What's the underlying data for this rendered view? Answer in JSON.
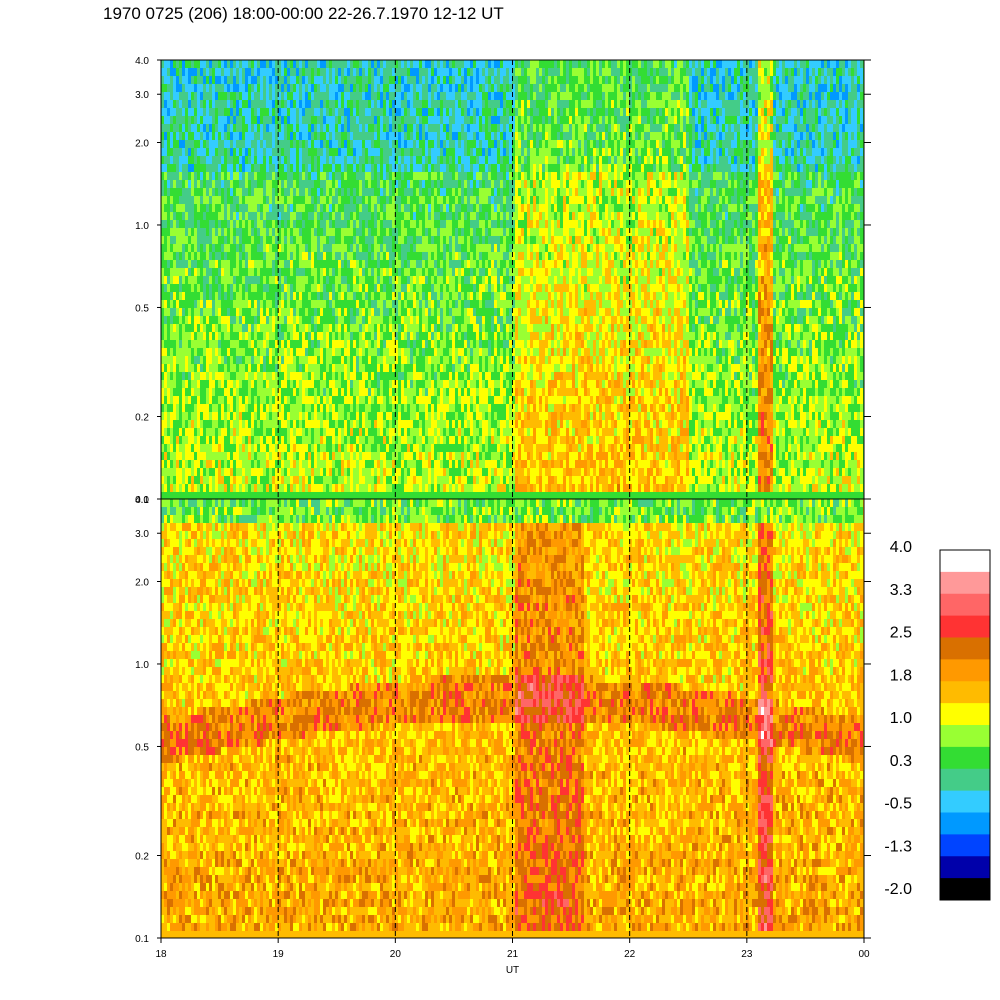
{
  "title": "1970 0725 (206) 18:00-00:00 22-26.7.1970  12-12 UT",
  "chart_data": {
    "type": "heatmap",
    "title": "1970 0725 (206) 18:00-00:00 22-26.7.1970  12-12 UT",
    "xlabel": "UT",
    "x_ticks": [
      "18",
      "19",
      "20",
      "21",
      "22",
      "23",
      "00"
    ],
    "x_range": [
      18,
      24
    ],
    "dashed_lines_at": [
      19,
      20,
      21,
      22,
      23
    ],
    "panels": [
      {
        "name": "upper",
        "y_scale": "log",
        "ylim": [
          0.1,
          4.0
        ],
        "y_ticks": [
          "0.1",
          "0.2",
          "0.5",
          "1.0",
          "2.0",
          "3.0",
          "4.0"
        ],
        "background_level": 0.5
      },
      {
        "name": "lower",
        "y_scale": "log",
        "ylim": [
          0.1,
          4.0
        ],
        "y_ticks": [
          "0.1",
          "0.2",
          "0.5",
          "1.0",
          "2.0",
          "3.0",
          "4.0"
        ],
        "background_level": 1.6
      }
    ],
    "colorbar": {
      "labels": [
        "4.0",
        "3.3",
        "2.5",
        "1.8",
        "1.0",
        "0.3",
        "-0.5",
        "-1.3",
        "-2.0"
      ],
      "colors": [
        "#ffffff",
        "#ff9999",
        "#ff6666",
        "#ff3333",
        "#d97000",
        "#ff9900",
        "#ffbb00",
        "#ffff00",
        "#99ff33",
        "#33dd33",
        "#44cc88",
        "#33ccff",
        "#0099ff",
        "#0044ff",
        "#0000aa",
        "#000000"
      ]
    }
  }
}
